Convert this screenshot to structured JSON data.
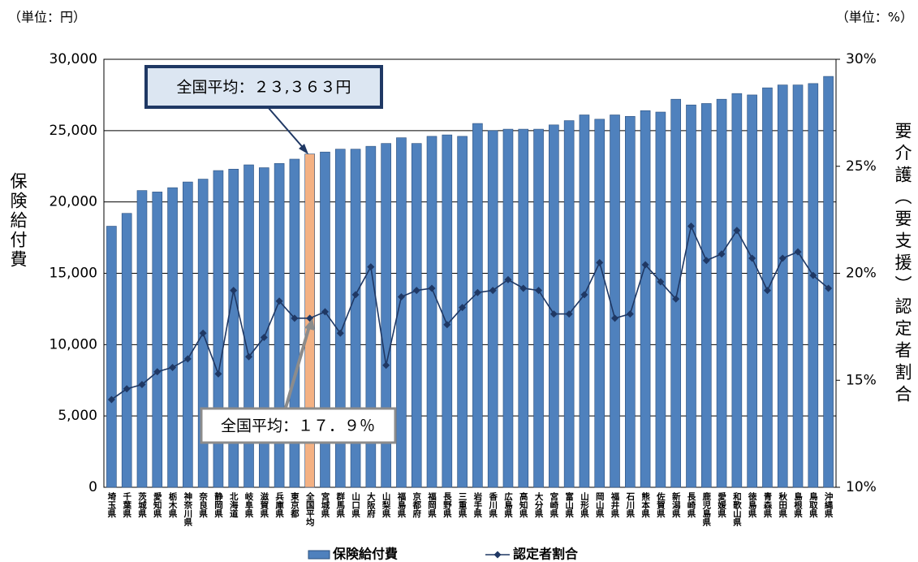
{
  "chart_data": {
    "type": "bar",
    "unit_left": "（単位：円）",
    "unit_right": "（単位：%）",
    "ylabel": "保険給付費",
    "y2label": "要介護（要支援）認定者割合",
    "categories": [
      "埼玉県",
      "千葉県",
      "茨城県",
      "愛知県",
      "栃木県",
      "神奈川県",
      "奈良県",
      "静岡県",
      "北海道",
      "岐阜県",
      "滋賀県",
      "兵庫県",
      "東京都",
      "全国平均",
      "宮城県",
      "群馬県",
      "山口県",
      "大阪府",
      "山梨県",
      "福島県",
      "京都府",
      "福岡県",
      "長野県",
      "三重県",
      "岩手県",
      "香川県",
      "広島県",
      "高知県",
      "大分県",
      "宮崎県",
      "富山県",
      "山形県",
      "岡山県",
      "福井県",
      "石川県",
      "熊本県",
      "佐賀県",
      "新潟県",
      "長崎県",
      "鹿児島県",
      "愛媛県",
      "和歌山県",
      "徳島県",
      "青森県",
      "秋田県",
      "島根県",
      "鳥取県",
      "沖縄県"
    ],
    "series": [
      {
        "name": "保険給付費",
        "type": "bar",
        "color": "#4f81bd",
        "colors": [
          "#4f81bd",
          "#4f81bd",
          "#4f81bd",
          "#4f81bd",
          "#4f81bd",
          "#4f81bd",
          "#4f81bd",
          "#4f81bd",
          "#4f81bd",
          "#4f81bd",
          "#4f81bd",
          "#4f81bd",
          "#4f81bd",
          "#f4b183",
          "#4f81bd",
          "#4f81bd",
          "#4f81bd",
          "#4f81bd",
          "#4f81bd",
          "#4f81bd",
          "#4f81bd",
          "#4f81bd",
          "#4f81bd",
          "#4f81bd",
          "#4f81bd",
          "#4f81bd",
          "#4f81bd",
          "#4f81bd",
          "#4f81bd",
          "#4f81bd",
          "#4f81bd",
          "#4f81bd",
          "#4f81bd",
          "#4f81bd",
          "#4f81bd",
          "#4f81bd",
          "#4f81bd",
          "#4f81bd",
          "#4f81bd",
          "#4f81bd",
          "#4f81bd",
          "#4f81bd",
          "#4f81bd",
          "#4f81bd",
          "#4f81bd",
          "#4f81bd",
          "#4f81bd",
          "#4f81bd"
        ],
        "values": [
          18300,
          19200,
          20800,
          20700,
          21000,
          21400,
          21600,
          22200,
          22300,
          22600,
          22400,
          22700,
          23000,
          23363,
          23500,
          23700,
          23700,
          23900,
          24100,
          24500,
          24100,
          24600,
          24700,
          24600,
          25500,
          25000,
          25100,
          25100,
          25100,
          25400,
          25700,
          26100,
          25800,
          26100,
          26000,
          26400,
          26300,
          27200,
          26800,
          26900,
          27200,
          27600,
          27500,
          28000,
          28200,
          28200,
          28300,
          28800
        ]
      },
      {
        "name": "認定者割合",
        "type": "line",
        "axis": "y2",
        "color": "#1f3864",
        "values": [
          14.1,
          14.6,
          14.8,
          15.4,
          15.6,
          16.0,
          17.2,
          15.3,
          19.2,
          16.1,
          17.0,
          18.7,
          17.9,
          17.9,
          18.2,
          17.2,
          19.0,
          20.3,
          15.7,
          18.9,
          19.2,
          19.3,
          17.6,
          18.4,
          19.1,
          19.2,
          19.7,
          19.3,
          19.2,
          18.1,
          18.1,
          19.0,
          20.5,
          17.9,
          18.1,
          20.4,
          19.6,
          18.8,
          22.2,
          20.6,
          20.9,
          22.0,
          20.7,
          19.2,
          20.7,
          21.0,
          19.9,
          19.3
        ]
      }
    ],
    "ylim": [
      0,
      30000
    ],
    "yticks": [
      0,
      {
        "value": 5000,
        "label": "5,000"
      },
      {
        "value": 10000,
        "label": "10,000"
      },
      {
        "value": 15000,
        "label": "15,000"
      },
      {
        "value": 20000,
        "label": "20,000"
      },
      {
        "value": 25000,
        "label": "25,000"
      },
      {
        "value": 30000,
        "label": "30,000"
      }
    ],
    "y2lim": [
      10,
      30
    ],
    "y2ticks": [
      {
        "value": 10,
        "label": "10%"
      },
      {
        "value": 15,
        "label": "15%"
      },
      {
        "value": 20,
        "label": "20%"
      },
      {
        "value": 25,
        "label": "25%"
      },
      {
        "value": 30,
        "label": "30%"
      }
    ],
    "grid": true,
    "annotations": [
      "全国平均：２３,３６３円",
      "全国平均：１７．９％"
    ]
  }
}
